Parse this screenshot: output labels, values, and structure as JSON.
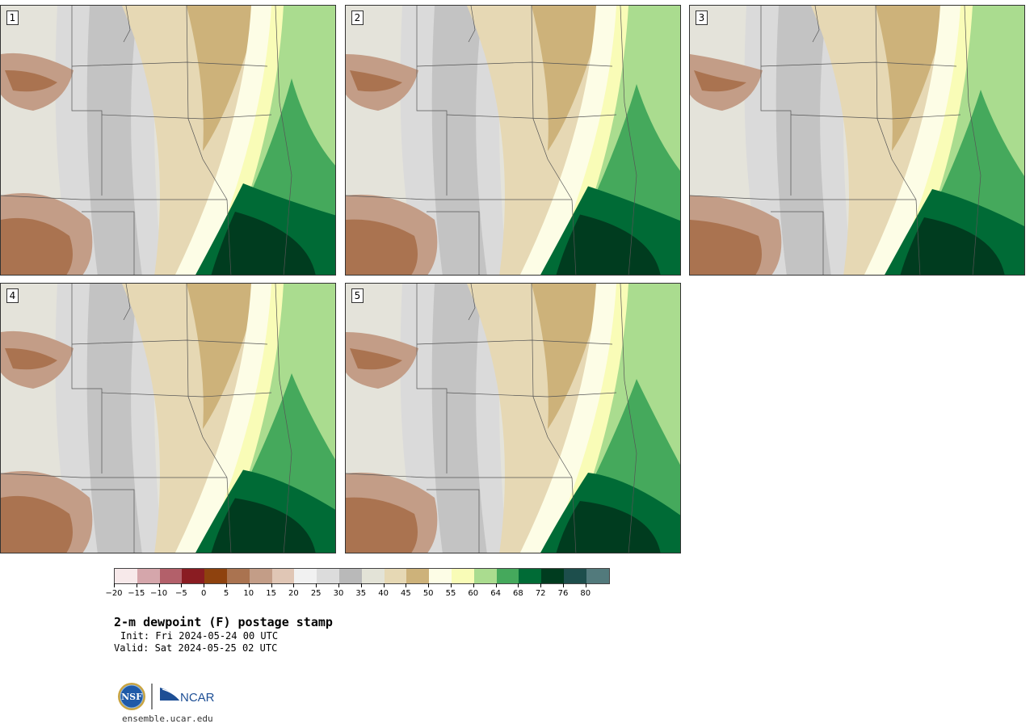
{
  "panels": [
    {
      "label": "1"
    },
    {
      "label": "2"
    },
    {
      "label": "3"
    },
    {
      "label": "4"
    },
    {
      "label": "5"
    }
  ],
  "colorbar": {
    "colors": [
      "#f7e9ea",
      "#d5a6ab",
      "#b3606a",
      "#8a1c22",
      "#8e420e",
      "#aa7350",
      "#c39d87",
      "#e0c6b5",
      "#f1f1f1",
      "#dcdcdc",
      "#b9b9b9",
      "#e3e3d7",
      "#e6d8b4",
      "#cdb27a",
      "#fdfde6",
      "#f9fcb7",
      "#aadc8f",
      "#45a95c",
      "#006b36",
      "#003c1f",
      "#1d4e4c",
      "#527a7c"
    ],
    "tick_labels": [
      "−20",
      "−15",
      "−10",
      "−5",
      "0",
      "5",
      "10",
      "15",
      "20",
      "25",
      "30",
      "35",
      "40",
      "45",
      "50",
      "55",
      "60",
      "64",
      "68",
      "72",
      "76",
      "80"
    ]
  },
  "title": "2-m dewpoint (F) postage stamp",
  "init": "Init: Fri 2024-05-24 00 UTC",
  "valid": "Valid: Sat 2024-05-25 02 UTC",
  "logos": {
    "nsf": "NSF",
    "ncar": "NCAR"
  },
  "url": "ensemble.ucar.edu"
}
